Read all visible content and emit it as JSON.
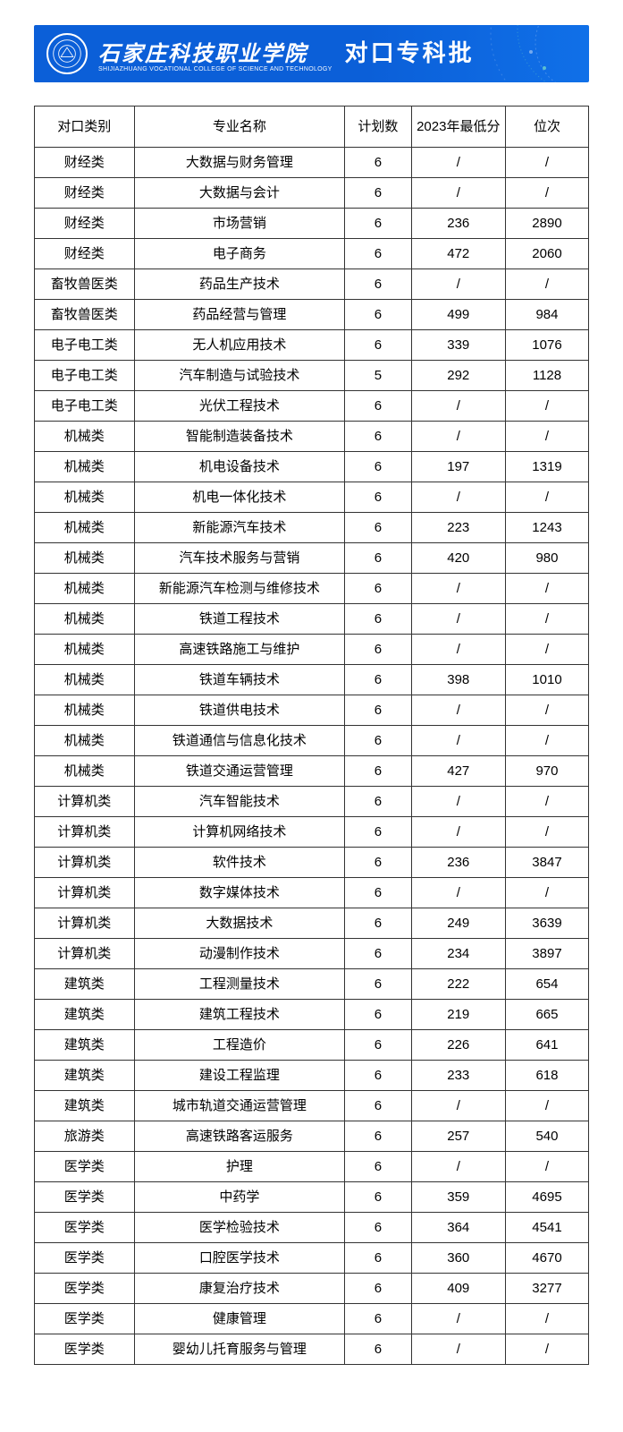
{
  "banner": {
    "school_name_cn": "石家庄科技职业学院",
    "school_name_en": "SHIJIAZHUANG VOCATIONAL COLLEGE OF SCIENCE AND TECHNOLOGY",
    "batch_label": "对口专科批",
    "bg_color": "#0b5fd8",
    "text_color": "#ffffff"
  },
  "table": {
    "columns": [
      "对口类别",
      "专业名称",
      "计划数",
      "2023年最低分",
      "位次"
    ],
    "column_widths_pct": [
      18,
      38,
      12,
      17,
      15
    ],
    "border_color": "#333333",
    "font_size_pt": 15,
    "rows": [
      [
        "财经类",
        "大数据与财务管理",
        "6",
        "/",
        "/"
      ],
      [
        "财经类",
        "大数据与会计",
        "6",
        "/",
        "/"
      ],
      [
        "财经类",
        "市场营销",
        "6",
        "236",
        "2890"
      ],
      [
        "财经类",
        "电子商务",
        "6",
        "472",
        "2060"
      ],
      [
        "畜牧兽医类",
        "药品生产技术",
        "6",
        "/",
        "/"
      ],
      [
        "畜牧兽医类",
        "药品经营与管理",
        "6",
        "499",
        "984"
      ],
      [
        "电子电工类",
        "无人机应用技术",
        "6",
        "339",
        "1076"
      ],
      [
        "电子电工类",
        "汽车制造与试验技术",
        "5",
        "292",
        "1128"
      ],
      [
        "电子电工类",
        "光伏工程技术",
        "6",
        "/",
        "/"
      ],
      [
        "机械类",
        "智能制造装备技术",
        "6",
        "/",
        "/"
      ],
      [
        "机械类",
        "机电设备技术",
        "6",
        "197",
        "1319"
      ],
      [
        "机械类",
        "机电一体化技术",
        "6",
        "/",
        "/"
      ],
      [
        "机械类",
        "新能源汽车技术",
        "6",
        "223",
        "1243"
      ],
      [
        "机械类",
        "汽车技术服务与营销",
        "6",
        "420",
        "980"
      ],
      [
        "机械类",
        "新能源汽车检测与维修技术",
        "6",
        "/",
        "/"
      ],
      [
        "机械类",
        "铁道工程技术",
        "6",
        "/",
        "/"
      ],
      [
        "机械类",
        "高速铁路施工与维护",
        "6",
        "/",
        "/"
      ],
      [
        "机械类",
        "铁道车辆技术",
        "6",
        "398",
        "1010"
      ],
      [
        "机械类",
        "铁道供电技术",
        "6",
        "/",
        "/"
      ],
      [
        "机械类",
        "铁道通信与信息化技术",
        "6",
        "/",
        "/"
      ],
      [
        "机械类",
        "铁道交通运营管理",
        "6",
        "427",
        "970"
      ],
      [
        "计算机类",
        "汽车智能技术",
        "6",
        "/",
        "/"
      ],
      [
        "计算机类",
        "计算机网络技术",
        "6",
        "/",
        "/"
      ],
      [
        "计算机类",
        "软件技术",
        "6",
        "236",
        "3847"
      ],
      [
        "计算机类",
        "数字媒体技术",
        "6",
        "/",
        "/"
      ],
      [
        "计算机类",
        "大数据技术",
        "6",
        "249",
        "3639"
      ],
      [
        "计算机类",
        "动漫制作技术",
        "6",
        "234",
        "3897"
      ],
      [
        "建筑类",
        "工程测量技术",
        "6",
        "222",
        "654"
      ],
      [
        "建筑类",
        "建筑工程技术",
        "6",
        "219",
        "665"
      ],
      [
        "建筑类",
        "工程造价",
        "6",
        "226",
        "641"
      ],
      [
        "建筑类",
        "建设工程监理",
        "6",
        "233",
        "618"
      ],
      [
        "建筑类",
        "城市轨道交通运营管理",
        "6",
        "/",
        "/"
      ],
      [
        "旅游类",
        "高速铁路客运服务",
        "6",
        "257",
        "540"
      ],
      [
        "医学类",
        "护理",
        "6",
        "/",
        "/"
      ],
      [
        "医学类",
        "中药学",
        "6",
        "359",
        "4695"
      ],
      [
        "医学类",
        "医学检验技术",
        "6",
        "364",
        "4541"
      ],
      [
        "医学类",
        "口腔医学技术",
        "6",
        "360",
        "4670"
      ],
      [
        "医学类",
        "康复治疗技术",
        "6",
        "409",
        "3277"
      ],
      [
        "医学类",
        "健康管理",
        "6",
        "/",
        "/"
      ],
      [
        "医学类",
        "婴幼儿托育服务与管理",
        "6",
        "/",
        "/"
      ]
    ]
  }
}
